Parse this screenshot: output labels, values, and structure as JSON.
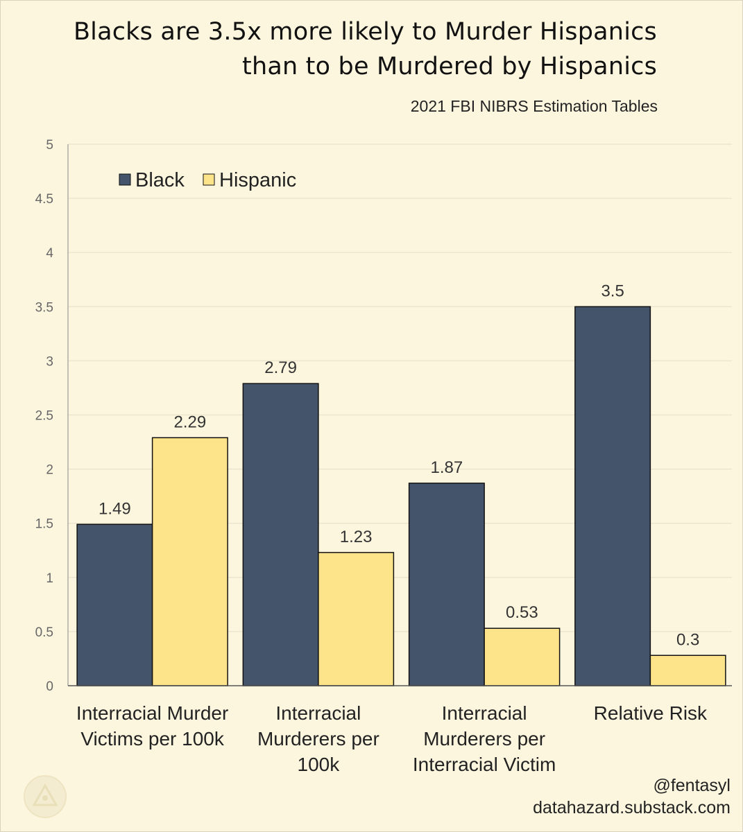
{
  "title_line1": "Blacks are 3.5x more likely to Murder Hispanics",
  "title_line2": "than to be Murdered by Hispanics",
  "subtitle": "2021 FBI NIBRS Estimation Tables",
  "credit_handle": "@fentasyl",
  "credit_site": "datahazard.substack.com",
  "colors": {
    "black_series": "#44546a",
    "hispanic_series": "#fde38a",
    "background": "#fdf6df",
    "gridline": "#ece5cf"
  },
  "chart_data": {
    "type": "bar",
    "title": "Blacks are 3.5x more likely to Murder Hispanics than to be Murdered by Hispanics",
    "subtitle": "2021 FBI NIBRS Estimation Tables",
    "categories": [
      [
        "Interracial Murder",
        "Victims per 100k"
      ],
      [
        "Interracial",
        "Murderers per",
        "100k"
      ],
      [
        "Interracial",
        "Murderers per",
        "Interracial Victim"
      ],
      [
        "Relative Risk"
      ]
    ],
    "series": [
      {
        "name": "Black",
        "values": [
          1.49,
          2.79,
          1.87,
          3.5
        ],
        "labels": [
          "1.49",
          "2.79",
          "1.87",
          "3.5"
        ]
      },
      {
        "name": "Hispanic",
        "values": [
          2.29,
          1.23,
          0.53,
          0.28
        ],
        "labels": [
          "2.29",
          "1.23",
          "0.53",
          "0.3"
        ]
      }
    ],
    "yticks": [
      "0",
      "0.5",
      "1",
      "1.5",
      "2",
      "2.5",
      "3",
      "3.5",
      "4",
      "4.5",
      "5"
    ],
    "ylim": [
      0,
      5
    ],
    "grid": true,
    "legend": "top-left",
    "xlabel": "",
    "ylabel": ""
  }
}
